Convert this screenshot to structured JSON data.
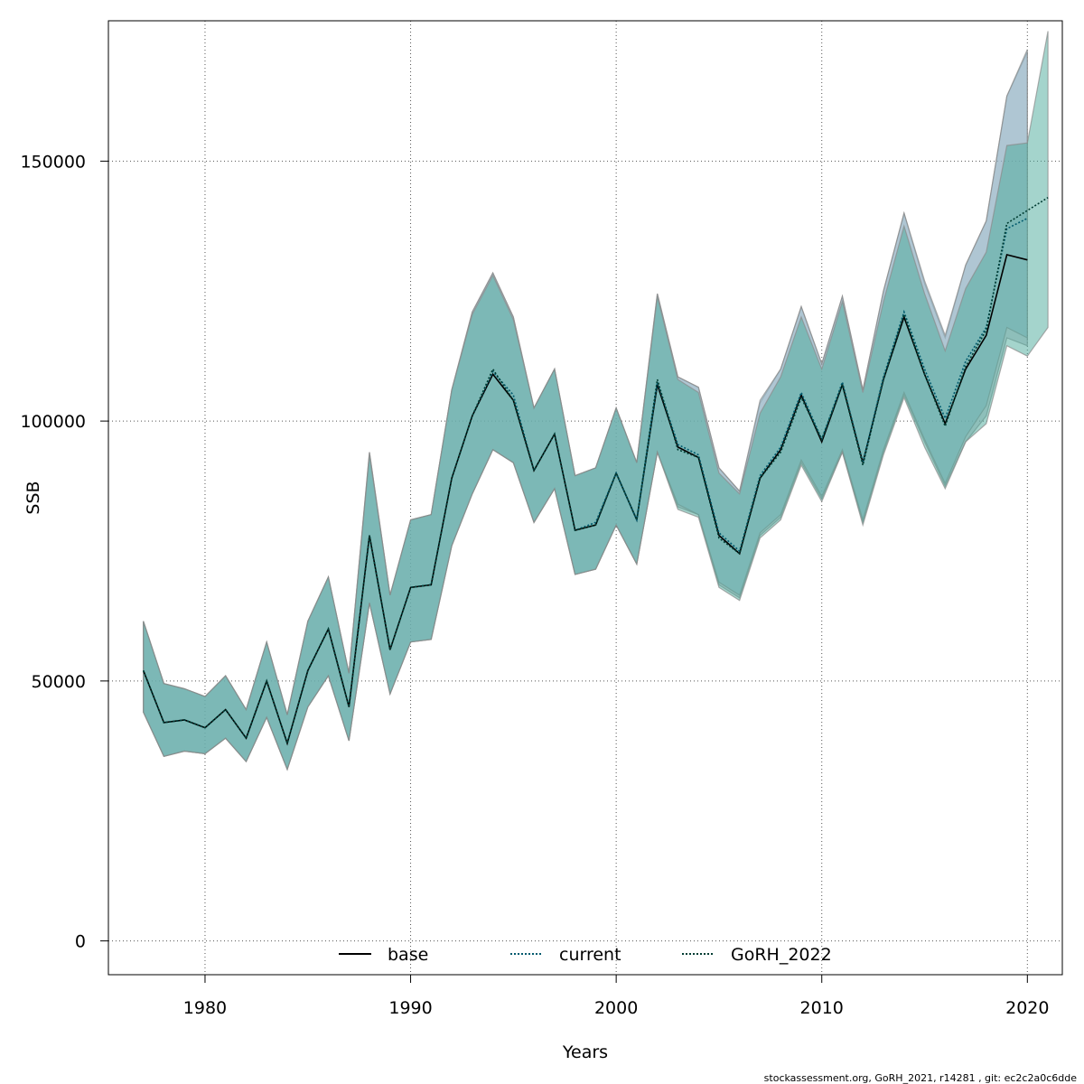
{
  "chart_data": {
    "type": "line",
    "xlabel": "Years",
    "ylabel": "SSB",
    "xlim": [
      1975.3,
      2021.7
    ],
    "ylim": [
      -6500,
      177000
    ],
    "x_ticks": [
      1980,
      1990,
      2000,
      2010,
      2020
    ],
    "y_ticks": [
      0,
      50000,
      100000,
      150000
    ],
    "x_tick_labels": [
      "1980",
      "1990",
      "2000",
      "2010",
      "2020"
    ],
    "y_tick_labels": [
      "0",
      "50000",
      "100000",
      "150000"
    ],
    "grid": true,
    "legend_position": "bottom",
    "series": [
      {
        "name": "base",
        "line_color": "#000000",
        "line_style": "solid",
        "band_color": "#a8aab8",
        "x": [
          1977,
          1978,
          1979,
          1980,
          1981,
          1982,
          1983,
          1984,
          1985,
          1986,
          1987,
          1988,
          1989,
          1990,
          1991,
          1992,
          1993,
          1994,
          1995,
          1996,
          1997,
          1998,
          1999,
          2000,
          2001,
          2002,
          2003,
          2004,
          2005,
          2006,
          2007,
          2008,
          2009,
          2010,
          2011,
          2012,
          2013,
          2014,
          2015,
          2016,
          2017,
          2018,
          2019,
          2020
        ],
        "y": [
          52000,
          42000,
          42500,
          41000,
          44500,
          39000,
          50000,
          38000,
          52000,
          60000,
          45000,
          78000,
          56000,
          68000,
          68500,
          89000,
          101000,
          109000,
          104000,
          90500,
          97500,
          79000,
          80000,
          90000,
          81000,
          107000,
          95000,
          93000,
          78000,
          74500,
          89000,
          94500,
          105000,
          96000,
          107000,
          92000,
          108000,
          120000,
          109000,
          99500,
          110000,
          116500,
          132000,
          131000
        ],
        "lower": [
          44000,
          35500,
          36500,
          36000,
          39000,
          34500,
          43000,
          33000,
          45000,
          51000,
          38500,
          65000,
          47500,
          57500,
          58000,
          76000,
          86000,
          94500,
          92000,
          80500,
          87000,
          70500,
          71500,
          80000,
          72500,
          94000,
          83500,
          82000,
          68500,
          66000,
          78000,
          81500,
          92000,
          85000,
          94000,
          80500,
          94000,
          105000,
          96000,
          87500,
          96000,
          101000,
          116000,
          114500
        ],
        "upper": [
          61500,
          49500,
          48500,
          47000,
          51000,
          44500,
          57500,
          43500,
          61500,
          70000,
          51500,
          94000,
          66500,
          81000,
          82000,
          106000,
          121000,
          128500,
          120000,
          102500,
          110000,
          89500,
          91000,
          102500,
          92000,
          124500,
          108500,
          106500,
          91000,
          86500,
          103500,
          110000,
          122000,
          111000,
          124000,
          106000,
          125000,
          140000,
          126500,
          116000,
          130000,
          138500,
          162500,
          171000
        ]
      },
      {
        "name": "current",
        "line_color": "#005a6e",
        "line_style": "dotted",
        "band_color": "#8cb8cc",
        "x": [
          1977,
          1978,
          1979,
          1980,
          1981,
          1982,
          1983,
          1984,
          1985,
          1986,
          1987,
          1988,
          1989,
          1990,
          1991,
          1992,
          1993,
          1994,
          1995,
          1996,
          1997,
          1998,
          1999,
          2000,
          2001,
          2002,
          2003,
          2004,
          2005,
          2006,
          2007,
          2008,
          2009,
          2010,
          2011,
          2012,
          2013,
          2014,
          2015,
          2016,
          2017,
          2018,
          2019,
          2020
        ],
        "y": [
          52000,
          42000,
          42500,
          41000,
          44500,
          39000,
          50000,
          38000,
          52000,
          60000,
          45000,
          78000,
          56000,
          68000,
          68500,
          89000,
          101000,
          109500,
          105000,
          90500,
          97500,
          79000,
          80500,
          90000,
          81000,
          107500,
          95500,
          93500,
          78500,
          75000,
          89500,
          95000,
          105500,
          96500,
          107500,
          92000,
          108500,
          121000,
          110000,
          100500,
          111500,
          118000,
          137000,
          139000
        ],
        "lower": [
          44000,
          35500,
          36500,
          36000,
          39000,
          34500,
          43000,
          33000,
          45000,
          51000,
          38500,
          65000,
          47500,
          57500,
          58000,
          76000,
          86000,
          94500,
          92000,
          80500,
          87000,
          70500,
          71500,
          80000,
          72500,
          94000,
          84000,
          82000,
          69000,
          66500,
          78500,
          82000,
          92500,
          85500,
          94500,
          81000,
          94500,
          105500,
          96500,
          88000,
          97000,
          103000,
          118000,
          116000
        ],
        "upper": [
          61500,
          49500,
          48500,
          47000,
          51000,
          44500,
          57500,
          43500,
          61500,
          70000,
          51500,
          94000,
          66500,
          81000,
          82000,
          106000,
          121000,
          128500,
          120000,
          102500,
          110000,
          89500,
          91000,
          102500,
          92000,
          124500,
          108500,
          106500,
          91000,
          86500,
          104000,
          110000,
          122000,
          111000,
          124000,
          106000,
          125000,
          140000,
          127000,
          116500,
          130000,
          138500,
          162500,
          171500
        ]
      },
      {
        "name": "GoRH_2022",
        "line_color": "#003c32",
        "line_style": "dotted",
        "band_color": "#4aaa9a",
        "x": [
          1977,
          1978,
          1979,
          1980,
          1981,
          1982,
          1983,
          1984,
          1985,
          1986,
          1987,
          1988,
          1989,
          1990,
          1991,
          1992,
          1993,
          1994,
          1995,
          1996,
          1997,
          1998,
          1999,
          2000,
          2001,
          2002,
          2003,
          2004,
          2005,
          2006,
          2007,
          2008,
          2009,
          2010,
          2011,
          2012,
          2013,
          2014,
          2015,
          2016,
          2017,
          2018,
          2019,
          2020,
          2021
        ],
        "y": [
          52000,
          42000,
          42500,
          41000,
          44500,
          39000,
          50000,
          38000,
          52000,
          60000,
          45000,
          78000,
          56000,
          68000,
          68500,
          89000,
          101000,
          110000,
          104000,
          90500,
          97500,
          79000,
          80000,
          90000,
          81000,
          108000,
          94500,
          93000,
          77500,
          74500,
          89000,
          94000,
          104500,
          96500,
          107000,
          91500,
          108000,
          120500,
          109000,
          99000,
          110500,
          117500,
          138000,
          140500,
          143000
        ],
        "lower": [
          44000,
          35500,
          36500,
          36000,
          39000,
          34500,
          43000,
          33000,
          45000,
          51000,
          38500,
          65000,
          47500,
          57500,
          58000,
          76000,
          86000,
          94500,
          92000,
          80500,
          87000,
          70500,
          71500,
          80000,
          72500,
          94000,
          83000,
          81500,
          68000,
          65500,
          77500,
          81000,
          91500,
          84500,
          94000,
          80000,
          93500,
          104500,
          95000,
          87000,
          96000,
          99500,
          114500,
          112500,
          118000
        ],
        "upper": [
          61500,
          49500,
          48500,
          47000,
          51000,
          44500,
          57500,
          43500,
          61500,
          70000,
          51500,
          93500,
          66500,
          81000,
          82000,
          106000,
          120500,
          128000,
          119500,
          102500,
          110000,
          89500,
          91000,
          102500,
          92000,
          124000,
          108000,
          105500,
          90000,
          86000,
          101500,
          108500,
          120000,
          110000,
          123000,
          105500,
          123000,
          137500,
          124500,
          113500,
          125500,
          132500,
          153000,
          153500,
          175000
        ]
      }
    ]
  },
  "footer_text": "stockassessment.org, GoRH_2021, r14281 , git: ec2c2a0c6dde"
}
